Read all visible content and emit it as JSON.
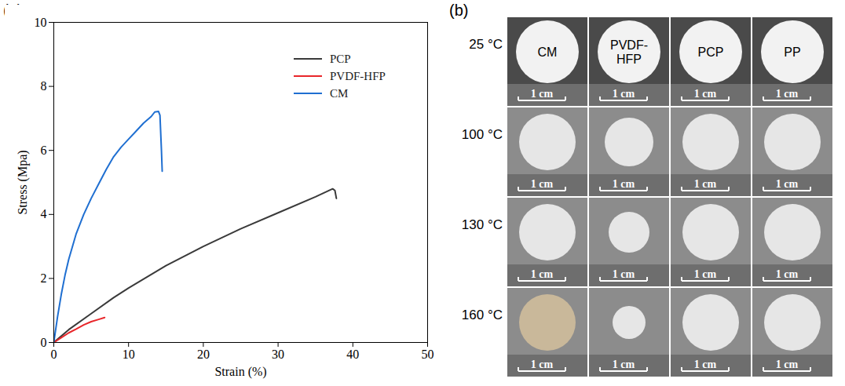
{
  "chart_data": {
    "type": "line",
    "panel_label": "(a)",
    "x_label": "Strain (%)",
    "y_label": "Stress (Mpa)",
    "xlim": [
      0,
      50
    ],
    "xticks": [
      0,
      10,
      20,
      30,
      40,
      50
    ],
    "ylim": [
      0,
      10
    ],
    "yticks": [
      0,
      2,
      4,
      6,
      8,
      10
    ],
    "grid": false,
    "legend": "upper right",
    "series": [
      {
        "name": "PCP",
        "color": "#3a3a3a",
        "x": [
          0,
          2,
          5,
          8,
          10,
          15,
          20,
          25,
          30,
          35,
          37.3,
          37.6,
          37.8
        ],
        "values": [
          0,
          0.4,
          0.9,
          1.4,
          1.7,
          2.4,
          3.0,
          3.55,
          4.05,
          4.55,
          4.8,
          4.75,
          4.5
        ]
      },
      {
        "name": "PVDF-HFP",
        "color": "#e8262a",
        "x": [
          0,
          1,
          2,
          3,
          4,
          5,
          6,
          6.8
        ],
        "values": [
          0,
          0.15,
          0.3,
          0.42,
          0.55,
          0.65,
          0.72,
          0.78
        ]
      },
      {
        "name": "CM",
        "color": "#1f6fd1",
        "x": [
          0,
          0.5,
          1,
          1.5,
          2,
          3,
          4,
          5,
          6,
          7,
          8,
          9,
          10,
          11,
          12,
          13,
          13.5,
          14,
          14.2,
          14.4,
          14.5
        ],
        "values": [
          0,
          0.8,
          1.5,
          2.1,
          2.6,
          3.4,
          4.0,
          4.5,
          4.95,
          5.4,
          5.8,
          6.1,
          6.35,
          6.6,
          6.85,
          7.05,
          7.2,
          7.22,
          7.1,
          6.0,
          5.35
        ]
      }
    ]
  },
  "photo_grid": {
    "panel_label": "(b)",
    "columns": [
      "CM",
      "PVDF-HFP",
      "PCP",
      "PP"
    ],
    "rows": [
      "25 °C",
      "100 °C",
      "130 °C",
      "160 °C"
    ],
    "scale_bar": "1 cm"
  }
}
